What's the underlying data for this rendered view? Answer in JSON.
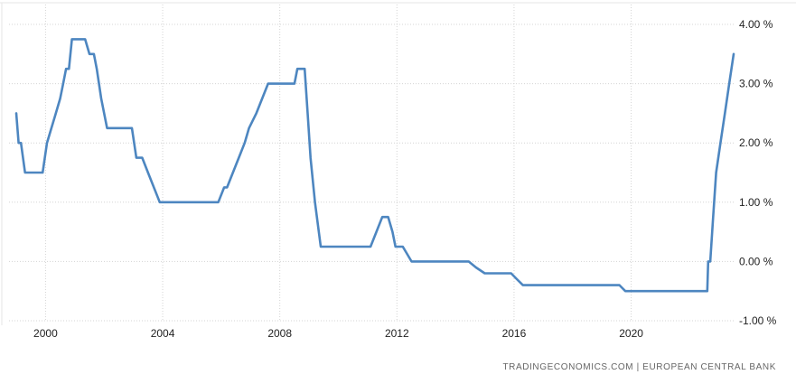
{
  "chart_data": {
    "type": "line",
    "title": "",
    "xlabel": "",
    "ylabel": "",
    "xlim": [
      1999.0,
      2023.5
    ],
    "ylim": [
      -1.0,
      4.0
    ],
    "x_ticks": [
      2000,
      2004,
      2008,
      2012,
      2016,
      2020
    ],
    "x_tick_labels": [
      "2000",
      "2004",
      "2008",
      "2012",
      "2016",
      "2020"
    ],
    "y_ticks": [
      4,
      3,
      2,
      1,
      0,
      -1
    ],
    "y_tick_labels": [
      "4.00 %",
      "3.00 %",
      "2.00 %",
      "1.00 %",
      "0.00 %",
      "-1.00 %"
    ],
    "grid": true,
    "legend": "none",
    "line_color": "#4d86c0",
    "series": [
      {
        "x": [
          1999.0,
          1999.08,
          1999.16,
          1999.3,
          1999.4,
          1999.9,
          2000.05,
          2000.2,
          2000.35,
          2000.5,
          2000.6,
          2000.7,
          2000.8,
          2000.9,
          2001.1,
          2001.35,
          2001.5,
          2001.65,
          2001.75,
          2001.9,
          2002.1,
          2002.8,
          2002.95,
          2003.1,
          2003.3,
          2003.5,
          2003.9,
          2005.9,
          2006.1,
          2006.2,
          2006.4,
          2006.6,
          2006.8,
          2006.95,
          2007.2,
          2007.4,
          2007.6,
          2008.5,
          2008.6,
          2008.85,
          2008.95,
          2009.05,
          2009.2,
          2009.4,
          2011.1,
          2011.3,
          2011.5,
          2011.7,
          2011.85,
          2011.95,
          2012.2,
          2012.5,
          2014.45,
          2014.7,
          2015.0,
          2015.9,
          2016.1,
          2016.3,
          2019.6,
          2019.8,
          2022.6,
          2022.63,
          2022.7,
          2022.8,
          2022.9,
          2023.05,
          2023.2,
          2023.35,
          2023.5
        ],
        "values": [
          2.5,
          2.0,
          2.0,
          1.5,
          1.5,
          1.5,
          2.0,
          2.25,
          2.5,
          2.75,
          3.0,
          3.25,
          3.25,
          3.75,
          3.75,
          3.75,
          3.5,
          3.5,
          3.25,
          2.75,
          2.25,
          2.25,
          2.25,
          1.75,
          1.75,
          1.5,
          1.0,
          1.0,
          1.25,
          1.25,
          1.5,
          1.75,
          2.0,
          2.25,
          2.5,
          2.75,
          3.0,
          3.0,
          3.25,
          3.25,
          2.5,
          1.75,
          1.0,
          0.25,
          0.25,
          0.5,
          0.75,
          0.75,
          0.5,
          0.25,
          0.25,
          0.0,
          0.0,
          -0.1,
          -0.2,
          -0.2,
          -0.3,
          -0.4,
          -0.4,
          -0.5,
          -0.5,
          0.0,
          0.0,
          0.75,
          1.5,
          2.0,
          2.5,
          3.0,
          3.5
        ]
      }
    ]
  },
  "footer": {
    "source": "TRADINGECONOMICS.COM  |  EUROPEAN CENTRAL BANK"
  }
}
